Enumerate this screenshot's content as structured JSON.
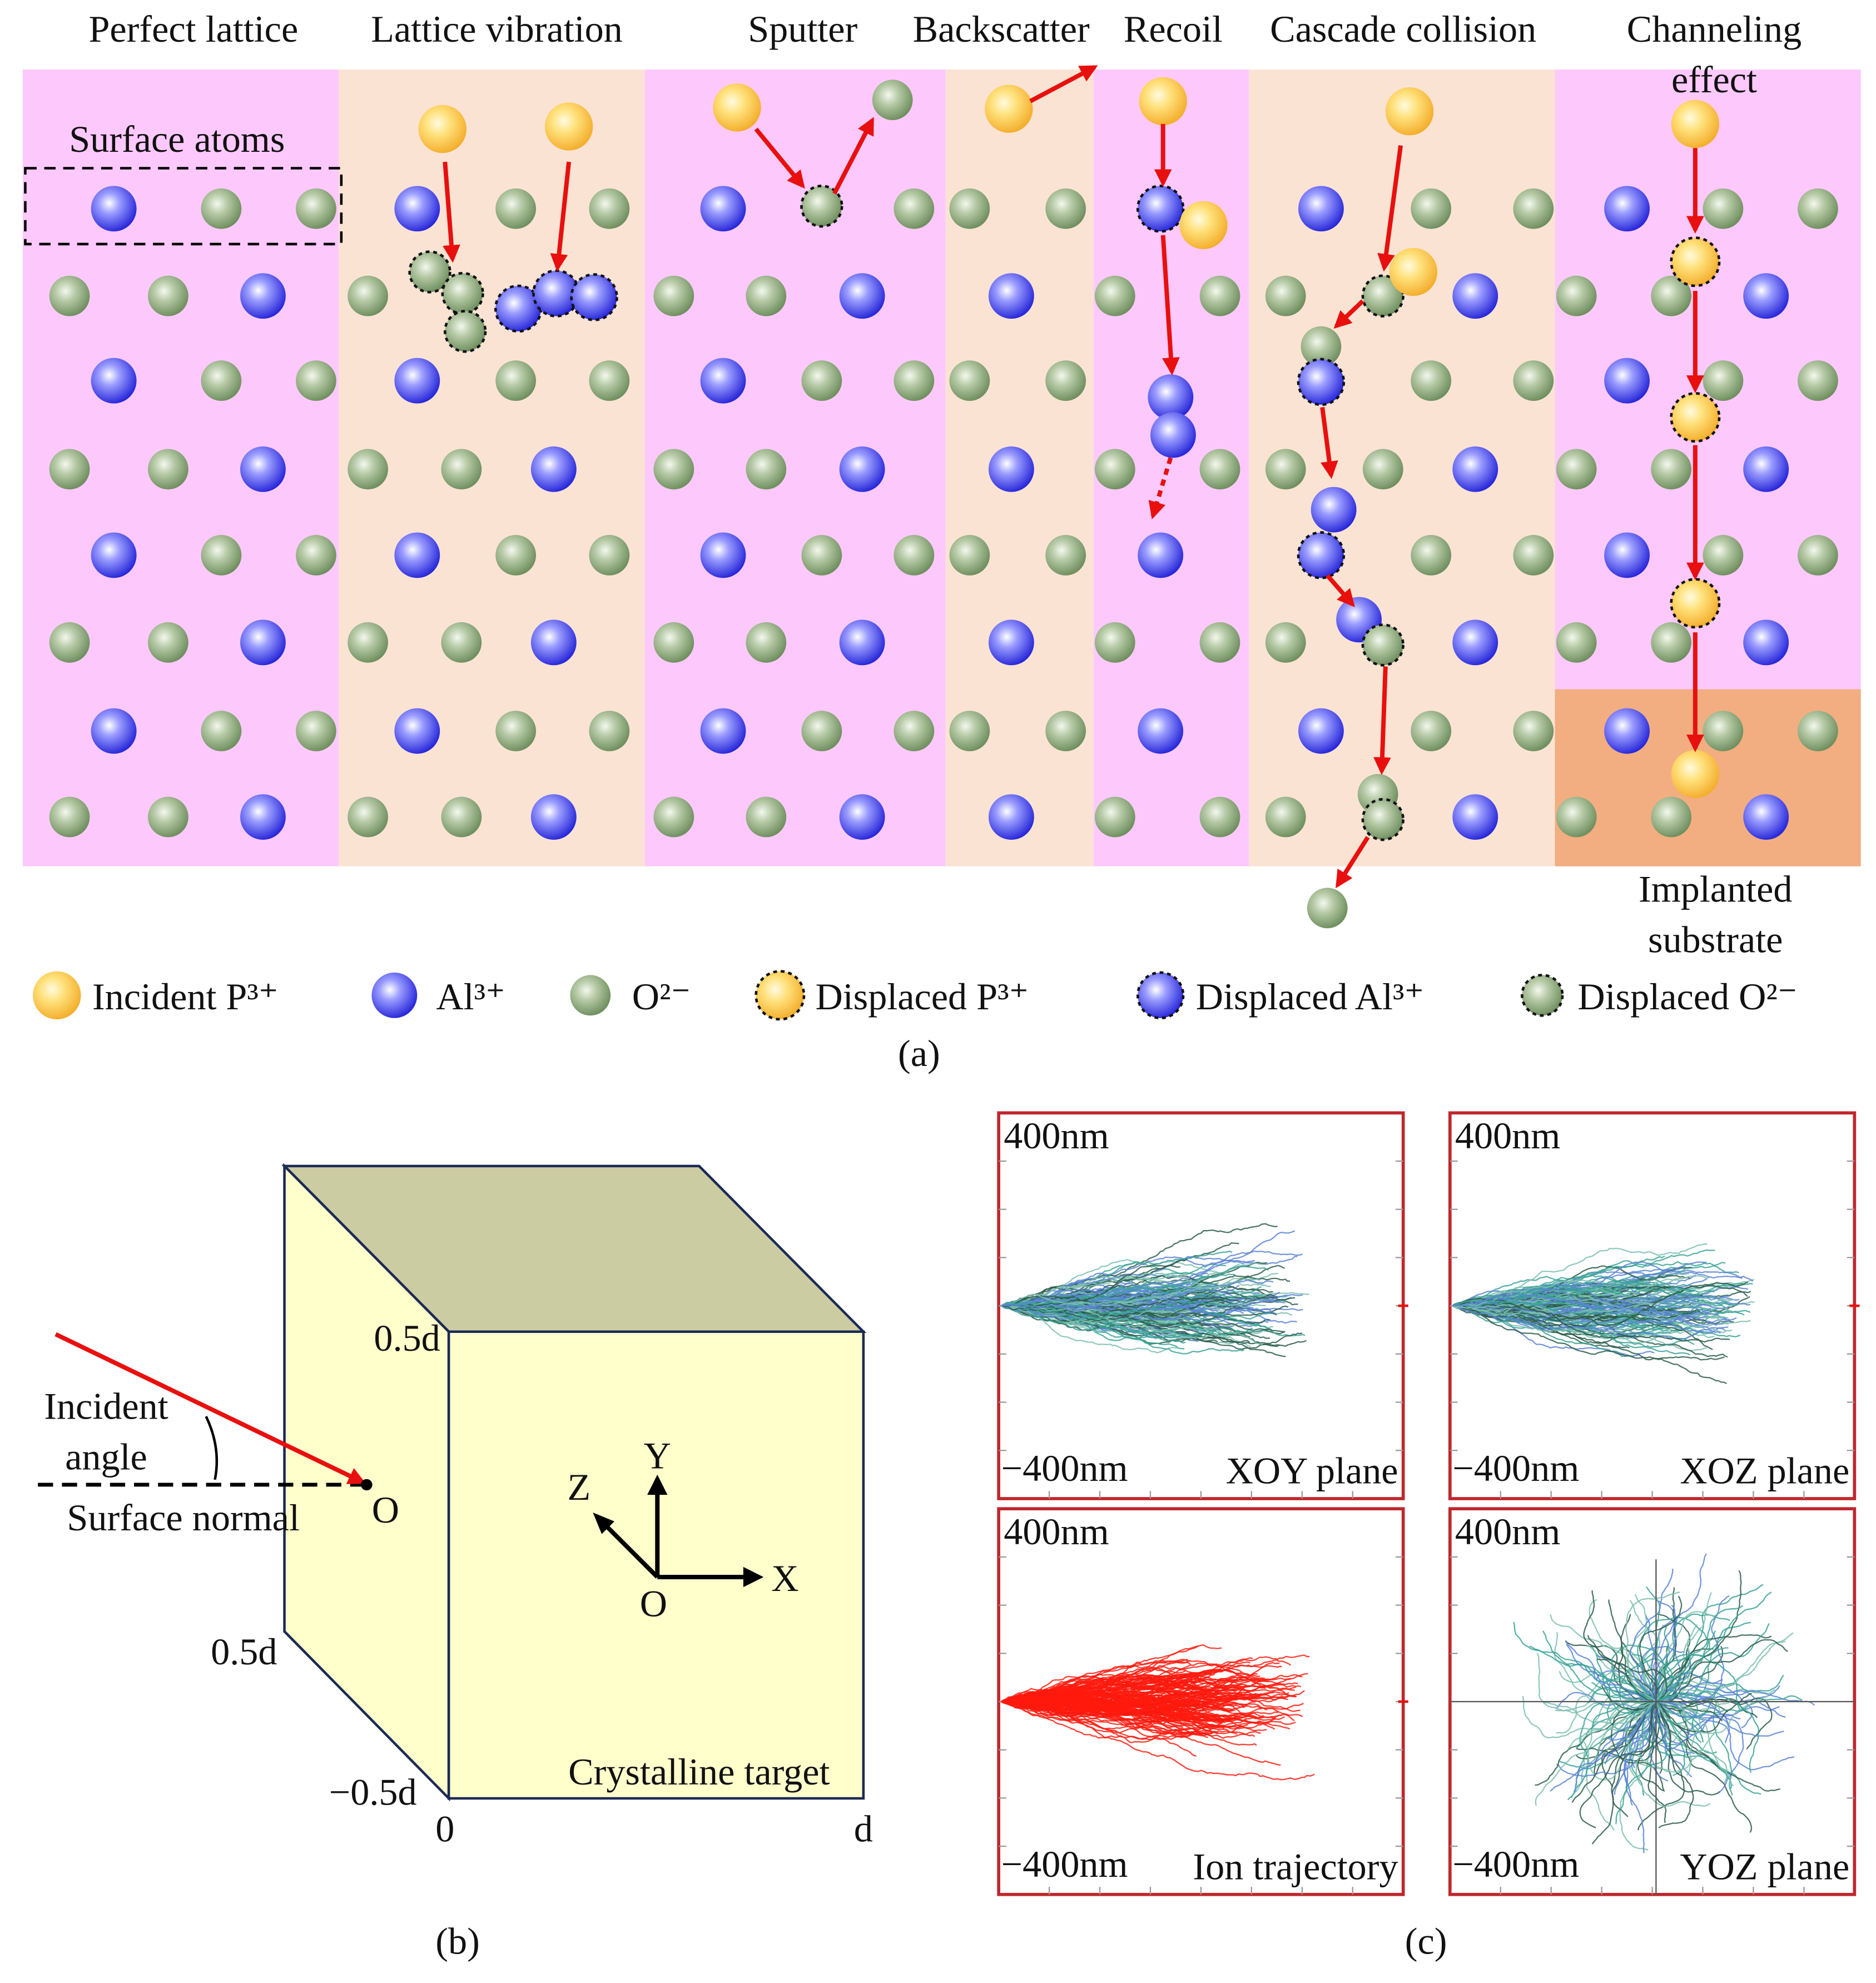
{
  "panel_a": {
    "columns": [
      [
        "Perfect lattice"
      ],
      [
        "Lattice vibration"
      ],
      [
        "Sputter"
      ],
      [
        "Backscatter"
      ],
      [
        "Recoil"
      ],
      [
        "Cascade collision"
      ],
      [
        "Channeling",
        "effect"
      ]
    ],
    "surface_atoms": "Surface atoms",
    "implanted_substrate": [
      "Implanted",
      "substrate"
    ],
    "legend": [
      "Incident P³⁺",
      "Al³⁺",
      "O²⁻",
      "Displaced P³⁺",
      "Displaced Al³⁺",
      "Displaced O²⁻"
    ],
    "caption": "(a)"
  },
  "panel_b": {
    "top_half": "0.5d",
    "incident_angle": [
      "Incident",
      "angle"
    ],
    "surface_normal": "Surface normal",
    "origin": "O",
    "side_half": "0.5d",
    "side_neg_half": "−0.5d",
    "zero": "0",
    "depth": "d",
    "target": "Crystalline target",
    "axes": {
      "x": "X",
      "y": "Y",
      "z": "Z",
      "o": "O"
    },
    "caption": "(b)"
  },
  "panel_c": {
    "plots": [
      {
        "top": "400nm",
        "bottom": "−400nm",
        "label": "XOY plane"
      },
      {
        "top": "400nm",
        "bottom": "−400nm",
        "label": "XOZ plane"
      },
      {
        "top": "400nm",
        "bottom": "−400nm",
        "label": "Ion trajectory"
      },
      {
        "top": "400nm",
        "bottom": "−400nm",
        "label": "YOZ plane"
      }
    ],
    "caption": "(c)"
  }
}
